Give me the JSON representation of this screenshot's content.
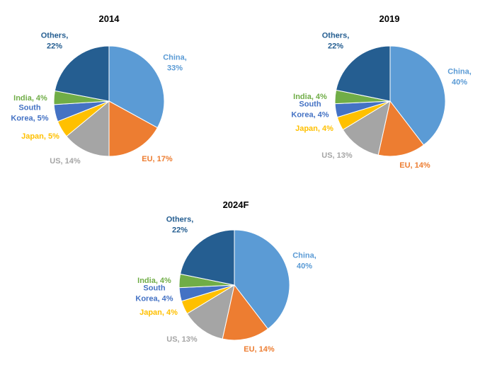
{
  "colors": {
    "China": "#5B9BD5",
    "EU": "#ED7D31",
    "US": "#A5A5A5",
    "Japan": "#FFC000",
    "South Korea": "#4472C4",
    "India": "#70AD47",
    "Others": "#255E91"
  },
  "chart_data": [
    {
      "type": "pie",
      "title": "2014",
      "categories": [
        "China",
        "EU",
        "US",
        "Japan",
        "South Korea",
        "India",
        "Others"
      ],
      "values": [
        33,
        17,
        14,
        5,
        5,
        4,
        22
      ],
      "labels": [
        "China, 33%",
        "EU, 17%",
        "US, 14%",
        "Japan, 5%",
        "South Korea, 5%",
        "India, 4%",
        "Others, 22%"
      ],
      "legend": "none"
    },
    {
      "type": "pie",
      "title": "2019",
      "categories": [
        "China",
        "EU",
        "US",
        "Japan",
        "South Korea",
        "India",
        "Others"
      ],
      "values": [
        40,
        14,
        13,
        4,
        4,
        4,
        22
      ],
      "labels": [
        "China, 40%",
        "EU, 14%",
        "US, 13%",
        "Japan, 4%",
        "South Korea, 4%",
        "India, 4%",
        "Others, 22%"
      ],
      "legend": "none"
    },
    {
      "type": "pie",
      "title": "2024F",
      "categories": [
        "China",
        "EU",
        "US",
        "Japan",
        "South Korea",
        "India",
        "Others"
      ],
      "values": [
        40,
        14,
        13,
        4,
        4,
        4,
        22
      ],
      "labels": [
        "China, 40%",
        "EU, 14%",
        "US, 13%",
        "Japan, 4%",
        "South Korea, 4%",
        "India, 4%",
        "Others, 22%"
      ],
      "legend": "none"
    }
  ]
}
